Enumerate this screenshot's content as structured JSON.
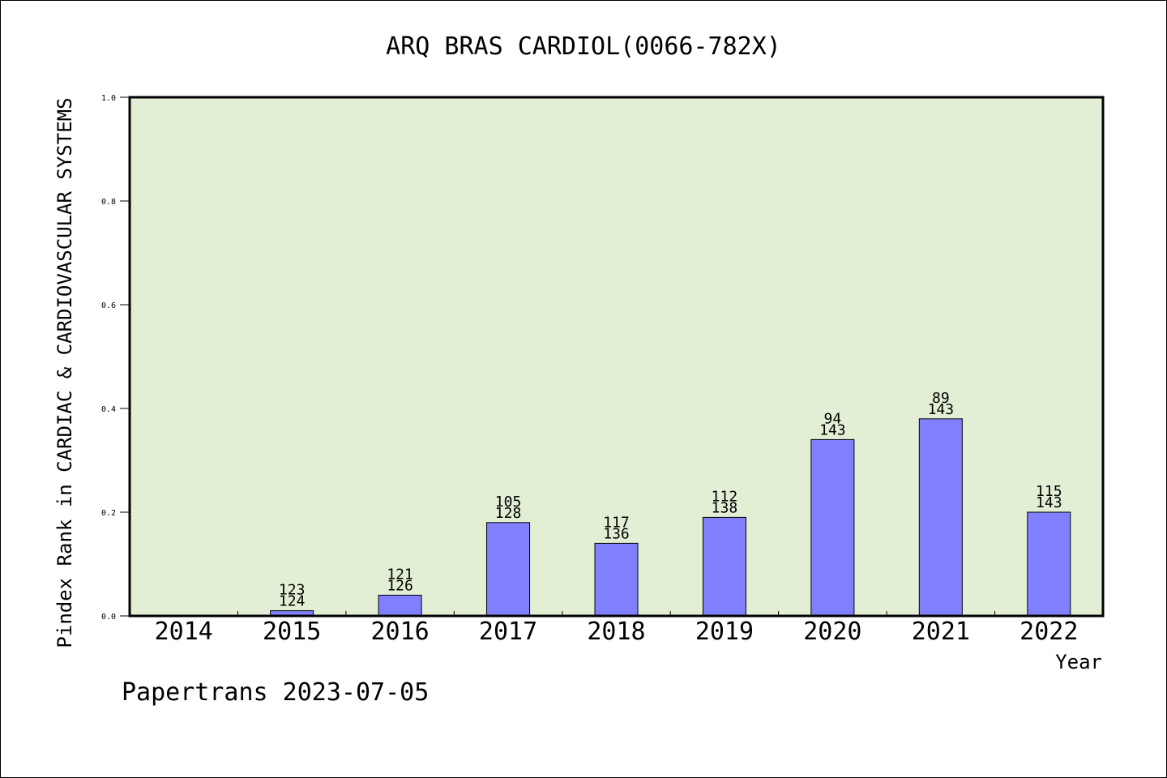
{
  "chart_data": {
    "type": "bar",
    "title": "ARQ BRAS CARDIOL(0066-782X)",
    "xlabel": "Year",
    "ylabel": "Pindex Rank in CARDIAC & CARDIOVASCULAR SYSTEMS",
    "categories": [
      "2014",
      "2015",
      "2016",
      "2017",
      "2018",
      "2019",
      "2020",
      "2021",
      "2022"
    ],
    "values": [
      null,
      0.01,
      0.04,
      0.18,
      0.14,
      0.19,
      0.34,
      0.38,
      0.2
    ],
    "bar_labels": [
      null,
      [
        "123",
        "124"
      ],
      [
        "121",
        "126"
      ],
      [
        "105",
        "128"
      ],
      [
        "117",
        "136"
      ],
      [
        "112",
        "138"
      ],
      [
        "94",
        "143"
      ],
      [
        "89",
        "143"
      ],
      [
        "115",
        "143"
      ]
    ],
    "ylim": [
      0,
      1.0
    ],
    "yticks": [
      "0.0",
      "0.2",
      "0.4",
      "0.6",
      "0.8",
      "1.0"
    ],
    "grid": false,
    "colors": {
      "plot_background": "#e2efd5",
      "bar_fill": "#8080ff",
      "bar_stroke": "#000000"
    }
  },
  "footer": "Papertrans 2023-07-05"
}
